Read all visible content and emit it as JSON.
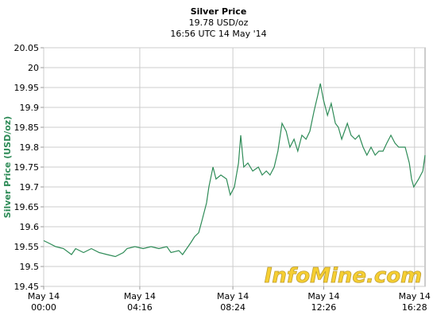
{
  "chart_data": {
    "type": "line",
    "title": "Silver Price",
    "subtitle": "19.78 USD/oz",
    "timestamp": "16:56 UTC 14 May '14",
    "y_label": "Silver Price (USD/oz)",
    "watermark": "InfoMine.com",
    "grid": true,
    "xlim": [
      0,
      1016
    ],
    "xticks": [
      {
        "value": 0,
        "label": "May 14\n00:00"
      },
      {
        "value": 256,
        "label": "May 14\n04:16"
      },
      {
        "value": 504,
        "label": "May 14\n08:24"
      },
      {
        "value": 746,
        "label": "May 14\n12:26"
      },
      {
        "value": 988,
        "label": "May 14\n16:28"
      }
    ],
    "ylim": [
      19.45,
      20.05
    ],
    "yticks": [
      19.45,
      19.5,
      19.55,
      19.6,
      19.65,
      19.7,
      19.75,
      19.8,
      19.85,
      19.9,
      19.95,
      20,
      20.05
    ],
    "series": [
      {
        "name": "Silver",
        "color": "#2e8b57",
        "x": [
          0,
          11,
          32,
          53,
          74,
          85,
          106,
          127,
          148,
          169,
          191,
          212,
          222,
          243,
          265,
          286,
          307,
          328,
          339,
          360,
          370,
          381,
          392,
          402,
          413,
          423,
          434,
          440,
          451,
          459,
          472,
          487,
          497,
          508,
          519,
          525,
          533,
          544,
          557,
          572,
          582,
          593,
          603,
          614,
          624,
          635,
          646,
          656,
          667,
          677,
          688,
          699,
          709,
          720,
          730,
          737,
          745,
          756,
          766,
          777,
          785,
          794,
          809,
          819,
          830,
          840,
          851,
          861,
          872,
          883,
          893,
          904,
          914,
          925,
          936,
          946,
          963,
          974,
          980,
          986,
          999,
          1010,
          1016
        ],
        "values": [
          19.565,
          19.56,
          19.55,
          19.545,
          19.53,
          19.545,
          19.535,
          19.545,
          19.535,
          19.53,
          19.525,
          19.535,
          19.545,
          19.55,
          19.545,
          19.55,
          19.545,
          19.55,
          19.535,
          19.54,
          19.53,
          19.545,
          19.56,
          19.575,
          19.585,
          19.62,
          19.66,
          19.7,
          19.75,
          19.72,
          19.73,
          19.72,
          19.68,
          19.7,
          19.76,
          19.83,
          19.75,
          19.76,
          19.74,
          19.75,
          19.73,
          19.74,
          19.73,
          19.75,
          19.79,
          19.86,
          19.84,
          19.8,
          19.82,
          19.79,
          19.83,
          19.82,
          19.84,
          19.89,
          19.93,
          19.96,
          19.92,
          19.88,
          19.91,
          19.86,
          19.85,
          19.82,
          19.86,
          19.83,
          19.82,
          19.83,
          19.8,
          19.78,
          19.8,
          19.78,
          19.79,
          19.79,
          19.81,
          19.83,
          19.81,
          19.8,
          19.8,
          19.76,
          19.72,
          19.7,
          19.72,
          19.74,
          19.78
        ]
      }
    ]
  }
}
